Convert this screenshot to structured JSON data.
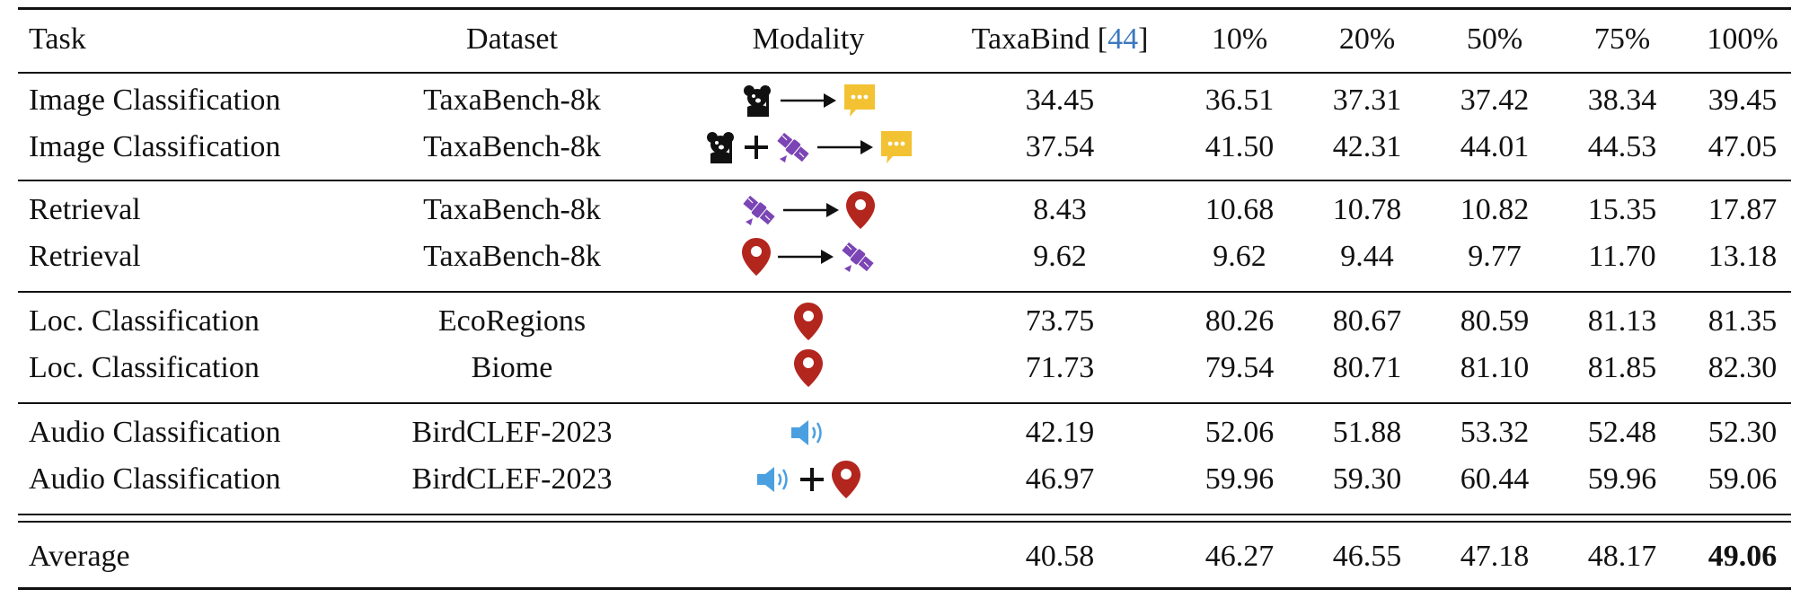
{
  "header": {
    "task": "Task",
    "dataset": "Dataset",
    "modality": "Modality",
    "taxabind": "TaxaBind [",
    "taxabind_cite": "44",
    "taxabind_close": "]",
    "p10": "10%",
    "p20": "20%",
    "p50": "50%",
    "p75": "75%",
    "p100": "100%"
  },
  "rows": [
    {
      "task": "Image Classification",
      "dataset": "TaxaBench-8k",
      "modality": [
        "image-icon",
        "arrow-icon",
        "text-icon"
      ],
      "taxabind": "34.45",
      "p10": "36.51",
      "p20": "37.31",
      "p50": "37.42",
      "p75": "38.34",
      "p100": "39.45"
    },
    {
      "task": "Image Classification",
      "dataset": "TaxaBench-8k",
      "modality": [
        "image-icon",
        "plus-icon",
        "satellite-icon",
        "arrow-icon",
        "text-icon"
      ],
      "taxabind": "37.54",
      "p10": "41.50",
      "p20": "42.31",
      "p50": "44.01",
      "p75": "44.53",
      "p100": "47.05"
    },
    {
      "task": "Retrieval",
      "dataset": "TaxaBench-8k",
      "modality": [
        "satellite-icon",
        "arrow-icon",
        "location-icon"
      ],
      "taxabind": "8.43",
      "p10": "10.68",
      "p20": "10.78",
      "p50": "10.82",
      "p75": "15.35",
      "p100": "17.87"
    },
    {
      "task": "Retrieval",
      "dataset": "TaxaBench-8k",
      "modality": [
        "location-icon",
        "arrow-icon",
        "satellite-icon"
      ],
      "taxabind": "9.62",
      "p10": "9.62",
      "p20": "9.44",
      "p50": "9.77",
      "p75": "11.70",
      "p100": "13.18"
    },
    {
      "task": "Loc. Classification",
      "dataset": "EcoRegions",
      "modality": [
        "location-icon"
      ],
      "taxabind": "73.75",
      "p10": "80.26",
      "p20": "80.67",
      "p50": "80.59",
      "p75": "81.13",
      "p100": "81.35"
    },
    {
      "task": "Loc. Classification",
      "dataset": "Biome",
      "modality": [
        "location-icon"
      ],
      "taxabind": "71.73",
      "p10": "79.54",
      "p20": "80.71",
      "p50": "81.10",
      "p75": "81.85",
      "p100": "82.30"
    },
    {
      "task": "Audio Classification",
      "dataset": "BirdCLEF-2023",
      "modality": [
        "audio-icon"
      ],
      "taxabind": "42.19",
      "p10": "52.06",
      "p20": "51.88",
      "p50": "53.32",
      "p75": "52.48",
      "p100": "52.30"
    },
    {
      "task": "Audio Classification",
      "dataset": "BirdCLEF-2023",
      "modality": [
        "audio-icon",
        "plus-icon",
        "location-icon"
      ],
      "taxabind": "46.97",
      "p10": "59.96",
      "p20": "59.30",
      "p50": "60.44",
      "p75": "59.96",
      "p100": "59.06"
    }
  ],
  "average": {
    "task": "Average",
    "taxabind": "40.58",
    "p10": "46.27",
    "p20": "46.55",
    "p50": "47.18",
    "p75": "48.17",
    "p100": "49.06"
  },
  "colors": {
    "satellite": "#7b45b5",
    "location": "#b3261e",
    "text": "#f3c232",
    "audio": "#4a9fe0"
  }
}
